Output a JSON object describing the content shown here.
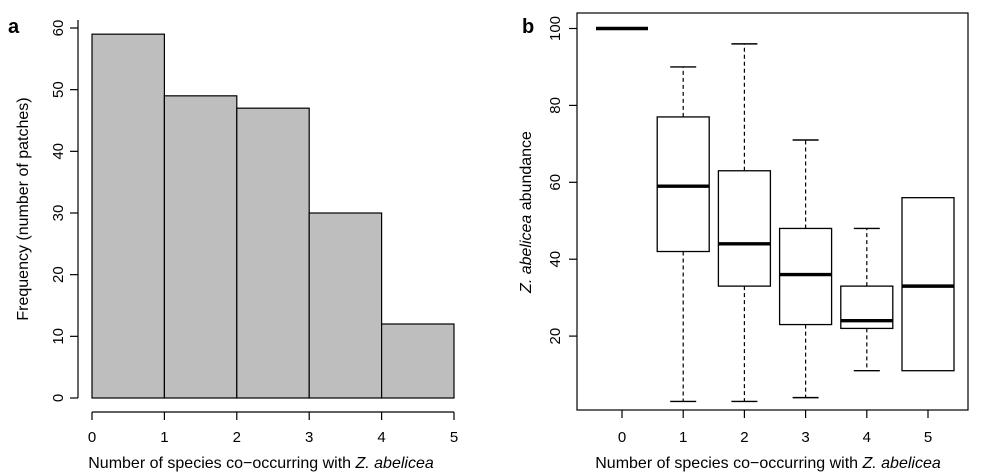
{
  "chart_data": [
    {
      "panel_label": "a",
      "type": "bar",
      "subtype": "histogram",
      "bins": [
        [
          0,
          1
        ],
        [
          1,
          2
        ],
        [
          2,
          3
        ],
        [
          3,
          4
        ],
        [
          4,
          5
        ]
      ],
      "values": [
        59,
        49,
        47,
        30,
        12
      ],
      "bar_color": "#bebebe",
      "xlabel_prefix": "Number of species co−occurring with ",
      "xlabel_italic": "Z. abelicea",
      "ylabel": "Frequency (number of patches)",
      "xlim": [
        0,
        5
      ],
      "ylim": [
        0,
        60
      ],
      "xticks": [
        "0",
        "1",
        "2",
        "3",
        "4",
        "5"
      ],
      "yticks": [
        "0",
        "10",
        "20",
        "30",
        "40",
        "50",
        "60"
      ],
      "grid": false
    },
    {
      "panel_label": "b",
      "type": "box",
      "categories": [
        "0",
        "1",
        "2",
        "3",
        "4",
        "5"
      ],
      "boxes": [
        {
          "category": "0",
          "min": 100,
          "q1": 100,
          "median": 100,
          "q3": 100,
          "max": 100
        },
        {
          "category": "1",
          "min": 3,
          "q1": 42,
          "median": 59,
          "q3": 77,
          "max": 90
        },
        {
          "category": "2",
          "min": 3,
          "q1": 33,
          "median": 44,
          "q3": 63,
          "max": 96
        },
        {
          "category": "3",
          "min": 4,
          "q1": 23,
          "median": 36,
          "q3": 48,
          "max": 71
        },
        {
          "category": "4",
          "min": 11,
          "q1": 22,
          "median": 24,
          "q3": 33,
          "max": 48
        },
        {
          "category": "5",
          "min": 11,
          "q1": 11,
          "median": 33,
          "q3": 56,
          "max": 56
        }
      ],
      "xlabel_prefix": "Number of species co−occurring with ",
      "xlabel_italic": "Z. abelicea",
      "ylabel_italic": "Z. abelicea",
      "ylabel_suffix": " abundance",
      "ylim": [
        0,
        100
      ],
      "yticks": [
        "20",
        "40",
        "60",
        "80",
        "100"
      ],
      "grid": false
    }
  ]
}
